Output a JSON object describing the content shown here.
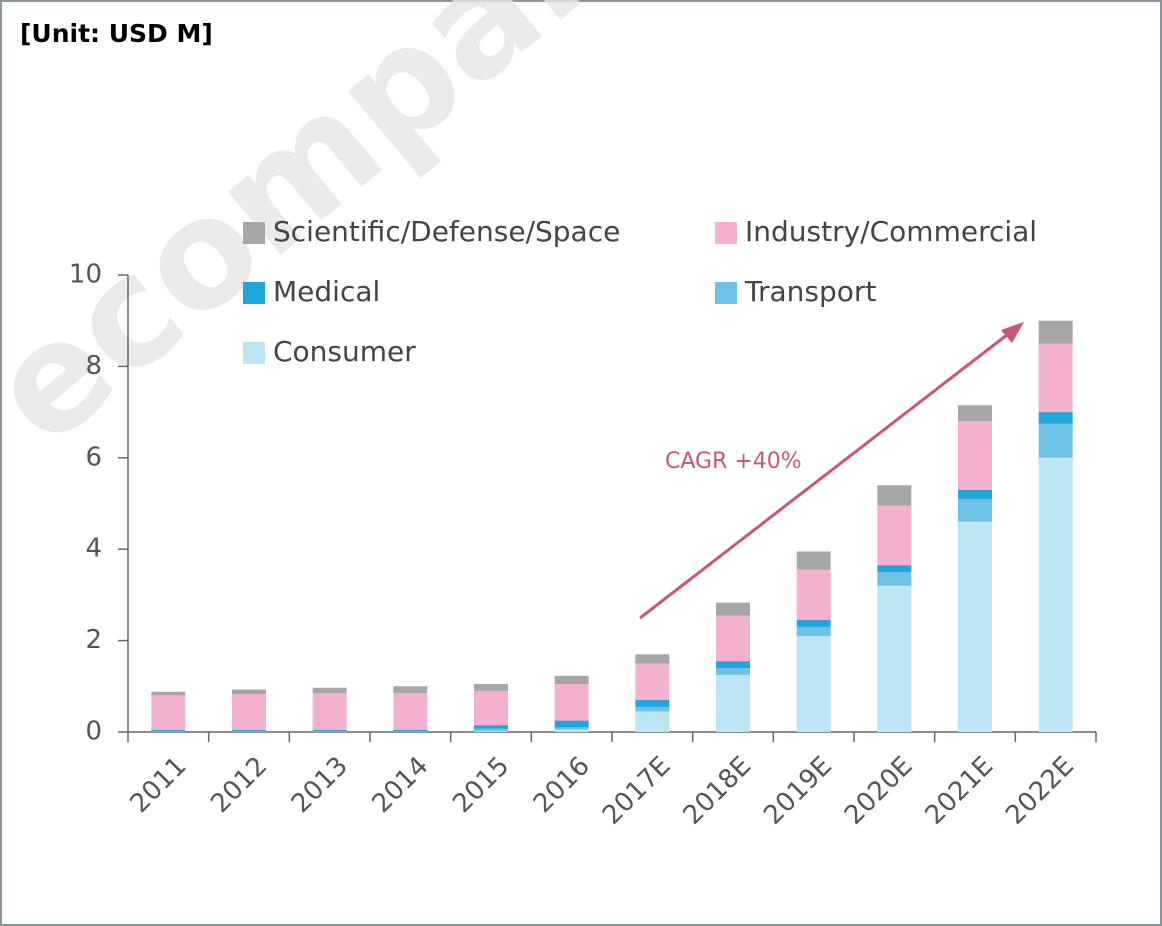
{
  "chart_data": {
    "type": "stacked_bar",
    "title": "[Unit: USD M]",
    "watermark": "ecompany",
    "annotation": "CAGR +40%",
    "categories": [
      "2011",
      "2012",
      "2013",
      "2014",
      "2015",
      "2016",
      "2017E",
      "2018E",
      "2019E",
      "2020E",
      "2021E",
      "2022E"
    ],
    "series": [
      {
        "name": "Consumer",
        "color": "#bde4f2",
        "values": [
          0,
          0,
          0,
          0,
          0.02,
          0.05,
          0.45,
          1.25,
          2.1,
          3.2,
          4.6,
          6.0
        ]
      },
      {
        "name": "Transport",
        "color": "#6ec1e4",
        "values": [
          0.02,
          0.02,
          0.02,
          0.02,
          0.05,
          0.05,
          0.1,
          0.15,
          0.2,
          0.3,
          0.5,
          0.75
        ]
      },
      {
        "name": "Medical",
        "color": "#1fa6dc",
        "values": [
          0.03,
          0.03,
          0.03,
          0.03,
          0.08,
          0.15,
          0.15,
          0.15,
          0.15,
          0.15,
          0.2,
          0.25
        ]
      },
      {
        "name": "Industry/Commercial",
        "color": "#f4b1cf",
        "values": [
          0.75,
          0.78,
          0.8,
          0.8,
          0.75,
          0.8,
          0.8,
          1.0,
          1.1,
          1.3,
          1.5,
          1.5
        ]
      },
      {
        "name": "Scientific/Defense/Space",
        "color": "#a6a6a6",
        "values": [
          0.08,
          0.1,
          0.12,
          0.15,
          0.15,
          0.18,
          0.2,
          0.28,
          0.4,
          0.45,
          0.35,
          0.5
        ]
      }
    ],
    "ylim": [
      0,
      10
    ],
    "yticks": [
      0,
      2,
      4,
      6,
      8,
      10
    ]
  }
}
